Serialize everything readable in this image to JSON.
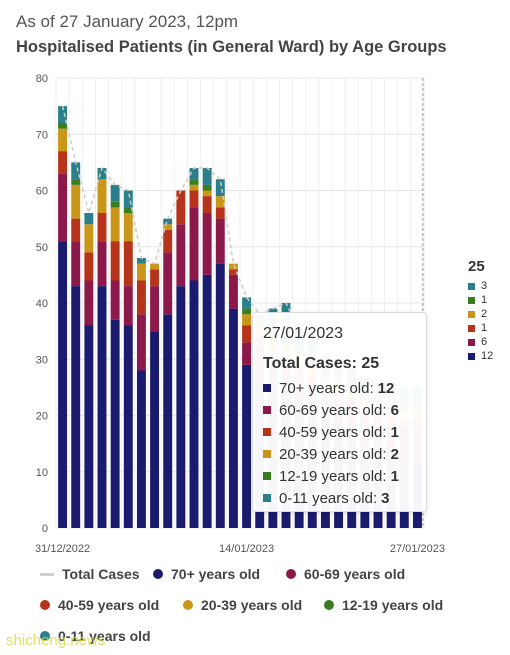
{
  "header": {
    "subtitle": "As of 27 January 2023, 12pm",
    "title": "Hospitalised Patients (in General Ward) by Age Groups"
  },
  "colors": {
    "age_70_plus": "#1a1a6e",
    "age_60_69": "#8b1a4a",
    "age_40_59": "#b5341a",
    "age_20_39": "#c9961a",
    "age_12_19": "#3a7d1e",
    "age_0_11": "#2a7f8a",
    "total_line": "#cccccc",
    "grid": "#e5e5e5"
  },
  "chart_data": {
    "type": "bar",
    "stacked": true,
    "title": "Hospitalised Patients (in General Ward) by Age Groups",
    "ylim": [
      0,
      80
    ],
    "y_ticks": [
      0,
      10,
      20,
      30,
      40,
      50,
      60,
      70,
      80
    ],
    "x_tick_labels": [
      "31/12/2022",
      "14/01/2023",
      "27/01/2023"
    ],
    "grid": true,
    "categories": [
      "31/12/2022",
      "01/01/2023",
      "02/01/2023",
      "03/01/2023",
      "04/01/2023",
      "05/01/2023",
      "06/01/2023",
      "07/01/2023",
      "08/01/2023",
      "09/01/2023",
      "10/01/2023",
      "11/01/2023",
      "12/01/2023",
      "13/01/2023",
      "14/01/2023",
      "15/01/2023",
      "16/01/2023",
      "17/01/2023",
      "18/01/2023",
      "19/01/2023",
      "20/01/2023",
      "21/01/2023",
      "22/01/2023",
      "23/01/2023",
      "24/01/2023",
      "25/01/2023",
      "26/01/2023",
      "27/01/2023"
    ],
    "series": [
      {
        "name": "70+ years old",
        "values": [
          51,
          43,
          36,
          43,
          37,
          36,
          28,
          35,
          38,
          43,
          44,
          45,
          47,
          39,
          29,
          25,
          24,
          23,
          22,
          20,
          18,
          16,
          15,
          14,
          13,
          12,
          12,
          12
        ]
      },
      {
        "name": "60-69 years old",
        "values": [
          12,
          8,
          8,
          8,
          7,
          7,
          10,
          8,
          11,
          11,
          13,
          11,
          8,
          6,
          4,
          7,
          5,
          5,
          5,
          5,
          5,
          6,
          6,
          6,
          6,
          6,
          6,
          6
        ]
      },
      {
        "name": "40-59 years old",
        "values": [
          4,
          4,
          5,
          5,
          7,
          8,
          6,
          3,
          4,
          6,
          3,
          3,
          2,
          1,
          3,
          2,
          2,
          2,
          2,
          2,
          2,
          2,
          2,
          1,
          1,
          1,
          1,
          1
        ]
      },
      {
        "name": "20-39 years old",
        "values": [
          4,
          6,
          5,
          6,
          6,
          5,
          3,
          1,
          1,
          0,
          1,
          1,
          2,
          1,
          2,
          2,
          3,
          2,
          2,
          2,
          2,
          2,
          2,
          2,
          2,
          2,
          2,
          2
        ]
      },
      {
        "name": "12-19 years old",
        "values": [
          1,
          1,
          0,
          0,
          1,
          1,
          0,
          0,
          0,
          0,
          1,
          1,
          0,
          0,
          1,
          1,
          1,
          1,
          1,
          1,
          1,
          1,
          1,
          1,
          1,
          1,
          1,
          1
        ]
      },
      {
        "name": "0-11 years old",
        "values": [
          3,
          3,
          2,
          2,
          3,
          3,
          1,
          0,
          1,
          0,
          2,
          3,
          3,
          0,
          2,
          1,
          4,
          7,
          3,
          3,
          3,
          3,
          3,
          3,
          3,
          3,
          3,
          3
        ]
      }
    ],
    "total_series": {
      "name": "Total Cases",
      "values": [
        75,
        65,
        56,
        64,
        61,
        60,
        48,
        47,
        55,
        60,
        64,
        64,
        62,
        47,
        41,
        38,
        39,
        40,
        35,
        33,
        31,
        30,
        29,
        27,
        26,
        25,
        25,
        25
      ]
    },
    "legend_position": "bottom"
  },
  "side_legend": {
    "total": "25",
    "items": [
      "3",
      "1",
      "2",
      "1",
      "6",
      "12"
    ]
  },
  "tooltip": {
    "date": "27/01/2023",
    "total_label": "Total Cases: 25",
    "rows": [
      {
        "label": "70+ years old:",
        "value": "12"
      },
      {
        "label": "60-69 years old:",
        "value": "6"
      },
      {
        "label": "40-59 years old:",
        "value": "1"
      },
      {
        "label": "20-39 years old:",
        "value": "2"
      },
      {
        "label": "12-19 years old:",
        "value": "1"
      },
      {
        "label": "0-11 years old:",
        "value": "3"
      }
    ]
  },
  "legend": {
    "total": "Total Cases",
    "items": [
      "70+ years old",
      "60-69 years old",
      "40-59 years old",
      "20-39 years old",
      "12-19 years old",
      "0-11 years old"
    ]
  },
  "watermark": "shicheng.news"
}
